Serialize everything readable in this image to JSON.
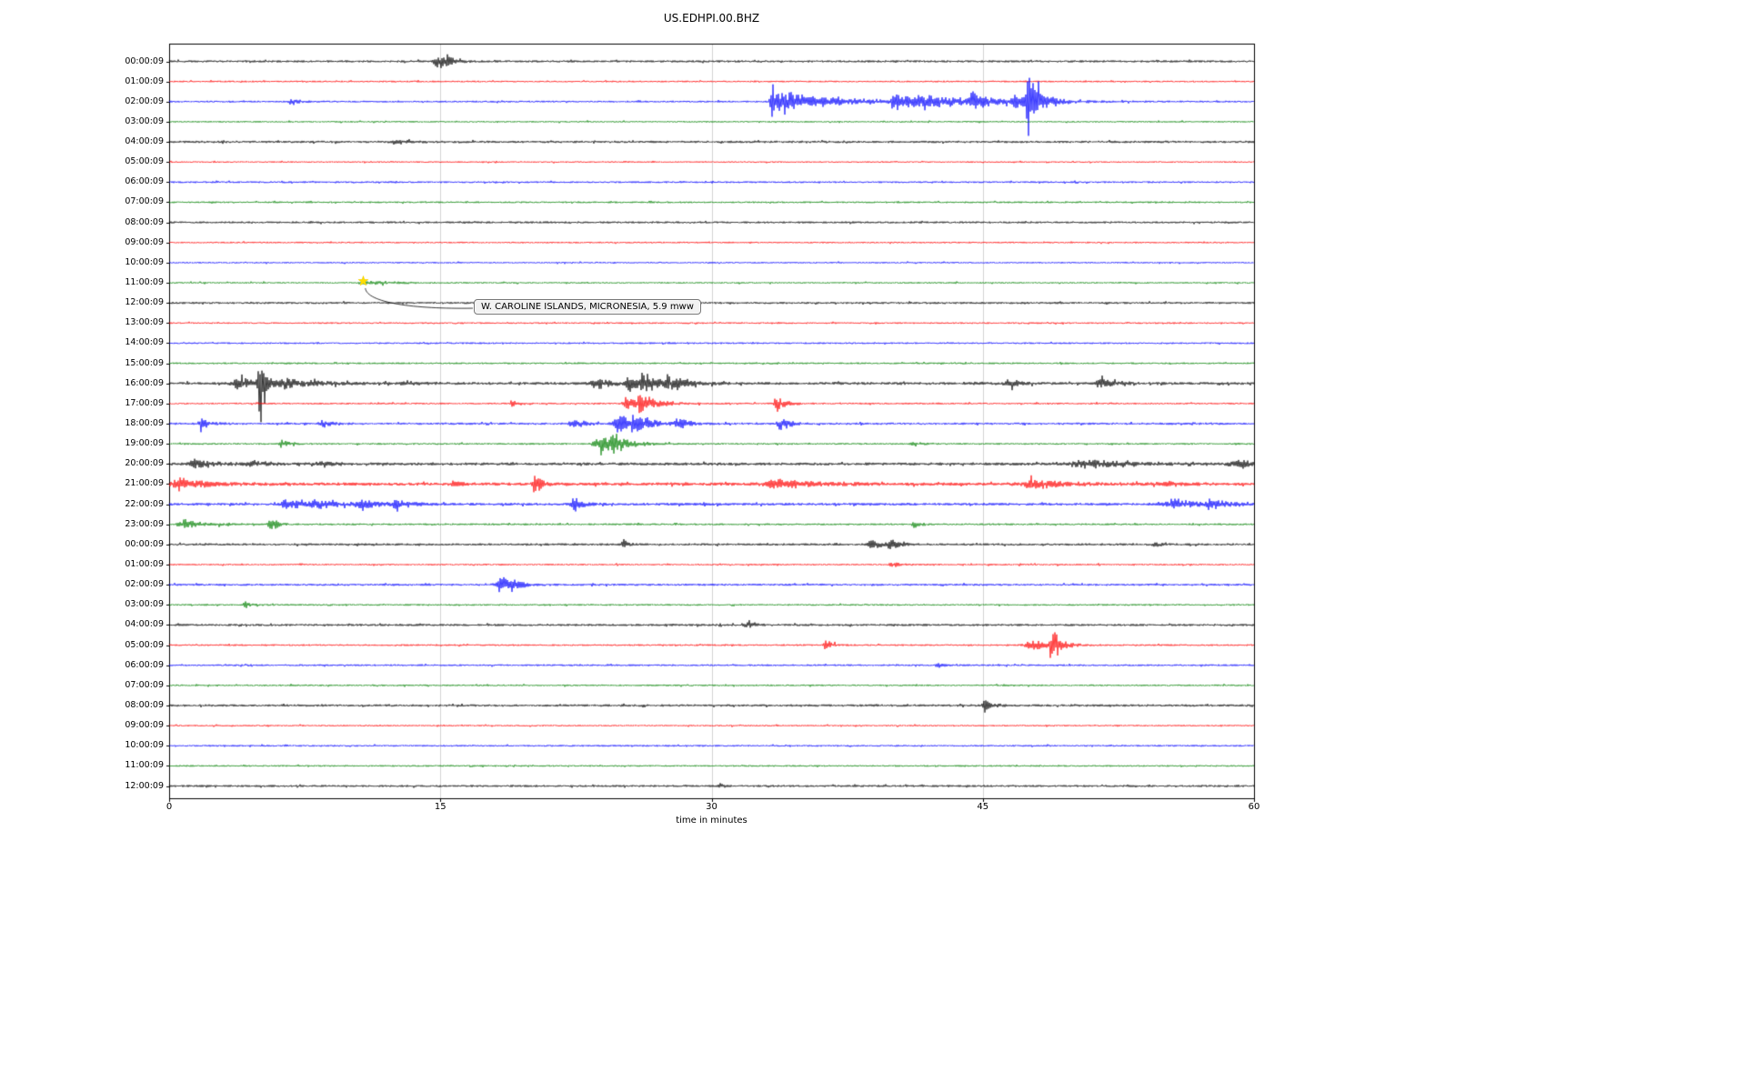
{
  "colors": {
    "black": "#000000",
    "red": "#ff0000",
    "blue": "#0000ff",
    "green": "#008000"
  },
  "icons": {
    "event-star": "★"
  },
  "chart_data": {
    "type": "line",
    "title": "US.EDHPI.00.BHZ",
    "xlabel": "time in minutes",
    "ylabel": "",
    "xlim": [
      0,
      60
    ],
    "x_ticks": [
      0,
      15,
      30,
      45,
      60
    ],
    "grid": "vertical",
    "annotation": {
      "text": "W. CAROLINE ISLANDS, MICRONESIA, 5.9 mww",
      "row_index": 11,
      "minute": 10.75,
      "marker": "star",
      "marker_color": "#ffdd00"
    },
    "rows": [
      {
        "label": "00:00:09",
        "color": "black",
        "noise": 1.2,
        "events": [
          {
            "t": 14.9,
            "amp": 9,
            "att": 0.25,
            "dec": 0.5
          },
          {
            "t": 15.4,
            "amp": 5,
            "att": 0.15,
            "dec": 0.4
          }
        ]
      },
      {
        "label": "01:00:09",
        "color": "red",
        "noise": 0.9,
        "events": []
      },
      {
        "label": "02:00:09",
        "color": "blue",
        "noise": 1.0,
        "events": [
          {
            "t": 6.8,
            "amp": 4,
            "att": 0.15,
            "dec": 0.4
          },
          {
            "t": 33.4,
            "amp": 24,
            "att": 0.15,
            "dec": 0.6
          },
          {
            "t": 34.3,
            "amp": 8,
            "att": 0.4,
            "dec": 4.0
          },
          {
            "t": 40.2,
            "amp": 12,
            "att": 0.2,
            "dec": 1.0
          },
          {
            "t": 42.0,
            "amp": 6,
            "att": 0.5,
            "dec": 3.0
          },
          {
            "t": 44.4,
            "amp": 11,
            "att": 0.2,
            "dec": 0.8
          },
          {
            "t": 46.8,
            "amp": 9,
            "att": 0.3,
            "dec": 1.5
          },
          {
            "t": 47.5,
            "amp": 46,
            "att": 0.1,
            "dec": 0.45
          }
        ]
      },
      {
        "label": "03:00:09",
        "color": "green",
        "noise": 0.9,
        "events": []
      },
      {
        "label": "04:00:09",
        "color": "black",
        "noise": 1.25,
        "events": [
          {
            "t": 12.5,
            "amp": 2.5,
            "att": 0.3,
            "dec": 0.8
          }
        ]
      },
      {
        "label": "05:00:09",
        "color": "red",
        "noise": 0.85,
        "events": []
      },
      {
        "label": "06:00:09",
        "color": "blue",
        "noise": 1.0,
        "events": []
      },
      {
        "label": "07:00:09",
        "color": "green",
        "noise": 0.95,
        "events": []
      },
      {
        "label": "08:00:09",
        "color": "black",
        "noise": 1.15,
        "events": []
      },
      {
        "label": "09:00:09",
        "color": "red",
        "noise": 0.9,
        "events": []
      },
      {
        "label": "10:00:09",
        "color": "blue",
        "noise": 0.9,
        "events": []
      },
      {
        "label": "11:00:09",
        "color": "green",
        "noise": 0.9,
        "events": [
          {
            "t": 10.8,
            "amp": 2.5,
            "att": 0.2,
            "dec": 1.5
          }
        ]
      },
      {
        "label": "12:00:09",
        "color": "black",
        "noise": 1.15,
        "events": []
      },
      {
        "label": "13:00:09",
        "color": "red",
        "noise": 0.9,
        "events": []
      },
      {
        "label": "14:00:09",
        "color": "blue",
        "noise": 0.95,
        "events": []
      },
      {
        "label": "15:00:09",
        "color": "green",
        "noise": 0.95,
        "events": []
      },
      {
        "label": "16:00:09",
        "color": "black",
        "noise": 1.5,
        "events": [
          {
            "t": 3.9,
            "amp": 7,
            "att": 0.5,
            "dec": 1.2
          },
          {
            "t": 5.0,
            "amp": 44,
            "att": 0.1,
            "dec": 0.35
          },
          {
            "t": 6.5,
            "amp": 6,
            "att": 0.3,
            "dec": 1.5
          },
          {
            "t": 13.0,
            "amp": 3,
            "att": 0.2,
            "dec": 0.6
          },
          {
            "t": 23.5,
            "amp": 9,
            "att": 0.25,
            "dec": 0.7
          },
          {
            "t": 25.4,
            "amp": 15,
            "att": 0.15,
            "dec": 0.5
          },
          {
            "t": 26.2,
            "amp": 17,
            "att": 0.15,
            "dec": 0.8
          },
          {
            "t": 27.6,
            "amp": 7,
            "att": 0.2,
            "dec": 1.0
          },
          {
            "t": 46.5,
            "amp": 5,
            "att": 0.2,
            "dec": 0.5
          },
          {
            "t": 51.5,
            "amp": 6,
            "att": 0.2,
            "dec": 0.6
          }
        ]
      },
      {
        "label": "17:00:09",
        "color": "red",
        "noise": 1.0,
        "events": [
          {
            "t": 19.0,
            "amp": 5,
            "att": 0.1,
            "dec": 0.3
          },
          {
            "t": 25.4,
            "amp": 11,
            "att": 0.25,
            "dec": 1.0
          },
          {
            "t": 26.1,
            "amp": 7,
            "att": 0.2,
            "dec": 0.8
          },
          {
            "t": 33.6,
            "amp": 8,
            "att": 0.15,
            "dec": 0.5
          }
        ]
      },
      {
        "label": "18:00:09",
        "color": "blue",
        "noise": 1.2,
        "events": [
          {
            "t": 1.8,
            "amp": 6,
            "att": 0.2,
            "dec": 0.5
          },
          {
            "t": 8.5,
            "amp": 5,
            "att": 0.2,
            "dec": 0.5
          },
          {
            "t": 22.3,
            "amp": 7,
            "att": 0.2,
            "dec": 0.6
          },
          {
            "t": 24.8,
            "amp": 13,
            "att": 0.25,
            "dec": 0.9
          },
          {
            "t": 25.7,
            "amp": 11,
            "att": 0.2,
            "dec": 0.8
          },
          {
            "t": 28.2,
            "amp": 7,
            "att": 0.2,
            "dec": 0.5
          },
          {
            "t": 33.8,
            "amp": 8,
            "att": 0.2,
            "dec": 0.5
          }
        ]
      },
      {
        "label": "19:00:09",
        "color": "green",
        "noise": 1.0,
        "events": [
          {
            "t": 6.2,
            "amp": 8,
            "att": 0.1,
            "dec": 0.35
          },
          {
            "t": 23.8,
            "amp": 12,
            "att": 0.3,
            "dec": 1.0
          },
          {
            "t": 24.6,
            "amp": 6,
            "att": 0.2,
            "dec": 0.8
          },
          {
            "t": 41.2,
            "amp": 3,
            "att": 0.15,
            "dec": 0.4
          }
        ]
      },
      {
        "label": "20:00:09",
        "color": "black",
        "noise": 1.55,
        "events": [
          {
            "t": 1.5,
            "amp": 5,
            "att": 0.4,
            "dec": 1.2
          },
          {
            "t": 4.5,
            "amp": 4,
            "att": 0.3,
            "dec": 0.8
          },
          {
            "t": 8.5,
            "amp": 6,
            "att": 0.2,
            "dec": 0.5
          },
          {
            "t": 50.8,
            "amp": 5,
            "att": 0.8,
            "dec": 2.0
          },
          {
            "t": 59.0,
            "amp": 5,
            "att": 0.4,
            "dec": 1.2
          }
        ]
      },
      {
        "label": "21:00:09",
        "color": "red",
        "noise": 1.7,
        "events": [
          {
            "t": 0.6,
            "amp": 7,
            "att": 0.4,
            "dec": 1.5
          },
          {
            "t": 15.7,
            "amp": 7,
            "att": 0.1,
            "dec": 0.3
          },
          {
            "t": 20.2,
            "amp": 15,
            "att": 0.1,
            "dec": 0.35
          },
          {
            "t": 33.8,
            "amp": 6,
            "att": 0.8,
            "dec": 2.0
          },
          {
            "t": 47.8,
            "amp": 5,
            "att": 0.8,
            "dec": 2.0
          },
          {
            "t": 55.0,
            "amp": 3,
            "att": 0.4,
            "dec": 1.0
          }
        ]
      },
      {
        "label": "22:00:09",
        "color": "blue",
        "noise": 1.45,
        "events": [
          {
            "t": 6.5,
            "amp": 6,
            "att": 0.3,
            "dec": 1.0
          },
          {
            "t": 8.2,
            "amp": 5,
            "att": 0.3,
            "dec": 1.0
          },
          {
            "t": 10.6,
            "amp": 6,
            "att": 0.3,
            "dec": 0.9
          },
          {
            "t": 12.6,
            "amp": 7,
            "att": 0.2,
            "dec": 0.6
          },
          {
            "t": 22.4,
            "amp": 9,
            "att": 0.15,
            "dec": 0.5
          },
          {
            "t": 55.6,
            "amp": 6,
            "att": 0.5,
            "dec": 1.2
          },
          {
            "t": 57.6,
            "amp": 8,
            "att": 0.2,
            "dec": 0.8
          }
        ]
      },
      {
        "label": "23:00:09",
        "color": "green",
        "noise": 1.05,
        "events": [
          {
            "t": 0.8,
            "amp": 6,
            "att": 0.3,
            "dec": 1.0
          },
          {
            "t": 5.6,
            "amp": 12,
            "att": 0.1,
            "dec": 0.3
          },
          {
            "t": 41.2,
            "amp": 5,
            "att": 0.1,
            "dec": 0.4
          }
        ]
      },
      {
        "label": "00:00:09",
        "color": "black",
        "noise": 1.25,
        "events": [
          {
            "t": 25.1,
            "amp": 6,
            "att": 0.1,
            "dec": 0.3
          },
          {
            "t": 38.8,
            "amp": 9,
            "att": 0.12,
            "dec": 0.5
          },
          {
            "t": 39.9,
            "amp": 8,
            "att": 0.12,
            "dec": 0.5
          },
          {
            "t": 54.5,
            "amp": 3,
            "att": 0.1,
            "dec": 0.3
          }
        ]
      },
      {
        "label": "01:00:09",
        "color": "red",
        "noise": 0.95,
        "events": [
          {
            "t": 40.0,
            "amp": 2.5,
            "att": 0.2,
            "dec": 0.5
          }
        ]
      },
      {
        "label": "02:00:09",
        "color": "blue",
        "noise": 1.15,
        "events": [
          {
            "t": 18.3,
            "amp": 12,
            "att": 0.25,
            "dec": 0.6
          },
          {
            "t": 19.0,
            "amp": 7,
            "att": 0.15,
            "dec": 0.5
          }
        ]
      },
      {
        "label": "03:00:09",
        "color": "green",
        "noise": 0.95,
        "events": [
          {
            "t": 4.2,
            "amp": 5,
            "att": 0.1,
            "dec": 0.3
          }
        ]
      },
      {
        "label": "04:00:09",
        "color": "black",
        "noise": 1.2,
        "events": [
          {
            "t": 32.0,
            "amp": 2.5,
            "att": 0.2,
            "dec": 0.5
          }
        ]
      },
      {
        "label": "05:00:09",
        "color": "red",
        "noise": 0.95,
        "events": [
          {
            "t": 36.3,
            "amp": 7,
            "att": 0.1,
            "dec": 0.35
          },
          {
            "t": 47.8,
            "amp": 7,
            "att": 0.4,
            "dec": 0.8
          },
          {
            "t": 48.8,
            "amp": 20,
            "att": 0.12,
            "dec": 0.5
          }
        ]
      },
      {
        "label": "06:00:09",
        "color": "blue",
        "noise": 1.0,
        "events": [
          {
            "t": 42.5,
            "amp": 3.5,
            "att": 0.1,
            "dec": 0.3
          }
        ]
      },
      {
        "label": "07:00:09",
        "color": "green",
        "noise": 0.95,
        "events": []
      },
      {
        "label": "08:00:09",
        "color": "black",
        "noise": 1.25,
        "events": [
          {
            "t": 45.1,
            "amp": 9,
            "att": 0.12,
            "dec": 0.4
          }
        ]
      },
      {
        "label": "09:00:09",
        "color": "red",
        "noise": 0.9,
        "events": []
      },
      {
        "label": "10:00:09",
        "color": "blue",
        "noise": 0.95,
        "events": []
      },
      {
        "label": "11:00:09",
        "color": "green",
        "noise": 0.9,
        "events": []
      },
      {
        "label": "12:00:09",
        "color": "black",
        "noise": 1.15,
        "events": [
          {
            "t": 30.5,
            "amp": 2.5,
            "att": 0.1,
            "dec": 0.3
          }
        ]
      }
    ]
  }
}
